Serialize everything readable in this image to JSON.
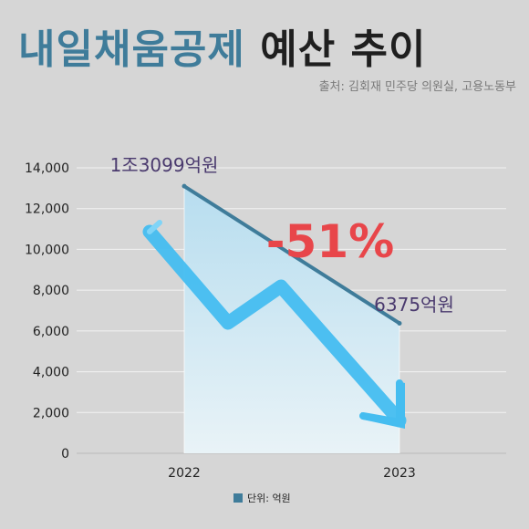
{
  "title": {
    "highlight": "내일채움공제",
    "rest": "예산 추이"
  },
  "source": "출처: 김회재 민주당 의원실, 고용노동부",
  "legend": {
    "label": "단위: 억원",
    "color": "#3f7c9a"
  },
  "chart_data": {
    "type": "area",
    "categories": [
      "2022",
      "2023"
    ],
    "values": [
      13099,
      6375
    ],
    "y_ticks": [
      "0",
      "2,000",
      "4,000",
      "6,000",
      "8,000",
      "10,000",
      "12,000",
      "14,000"
    ],
    "ylim": [
      0,
      14000
    ],
    "grid": true,
    "legend_position": "bottom",
    "value_labels": [
      "1조3099억원",
      "6375억원"
    ],
    "annotation": "-51%",
    "colors": {
      "line": "#3f7c9a",
      "fill_top": "#b7ddef",
      "fill_bottom": "#e9f3f7",
      "arrow": "#45bdf0",
      "annotation": "#e8464a",
      "value_label": "#4a3a6e"
    }
  }
}
